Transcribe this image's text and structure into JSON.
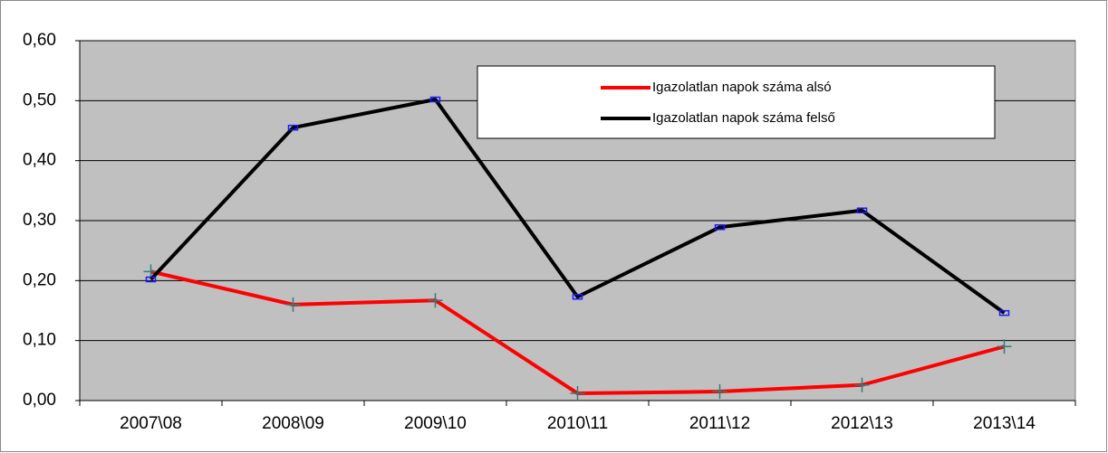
{
  "chart_data": {
    "type": "line",
    "categories": [
      "2007\\08",
      "2008\\09",
      "2009\\10",
      "2010\\11",
      "2011\\12",
      "2012\\13",
      "2013\\14"
    ],
    "series": [
      {
        "name": "Igazolatlan napok száma alsó",
        "color": "#ff0000",
        "marker_color": "#2e7d7d",
        "marker": "plus",
        "values": [
          0.215,
          0.16,
          0.167,
          0.012,
          0.015,
          0.026,
          0.09
        ]
      },
      {
        "name": "Igazolatlan napok száma felső",
        "color": "#000000",
        "marker_color": "#1a1aff",
        "marker": "dash",
        "values": [
          0.202,
          0.455,
          0.502,
          0.173,
          0.289,
          0.317,
          0.146
        ]
      }
    ],
    "ylim": [
      0,
      0.6
    ],
    "yticks": [
      {
        "value": 0,
        "label": "0,00"
      },
      {
        "value": 0.1,
        "label": "0,10"
      },
      {
        "value": 0.2,
        "label": "0,20"
      },
      {
        "value": 0.3,
        "label": "0,30"
      },
      {
        "value": 0.4,
        "label": "0,40"
      },
      {
        "value": 0.5,
        "label": "0,50"
      },
      {
        "value": 0.6,
        "label": "0,60"
      }
    ],
    "grid": true,
    "plot_background": "#c0c0c0",
    "legend": "top-right"
  }
}
